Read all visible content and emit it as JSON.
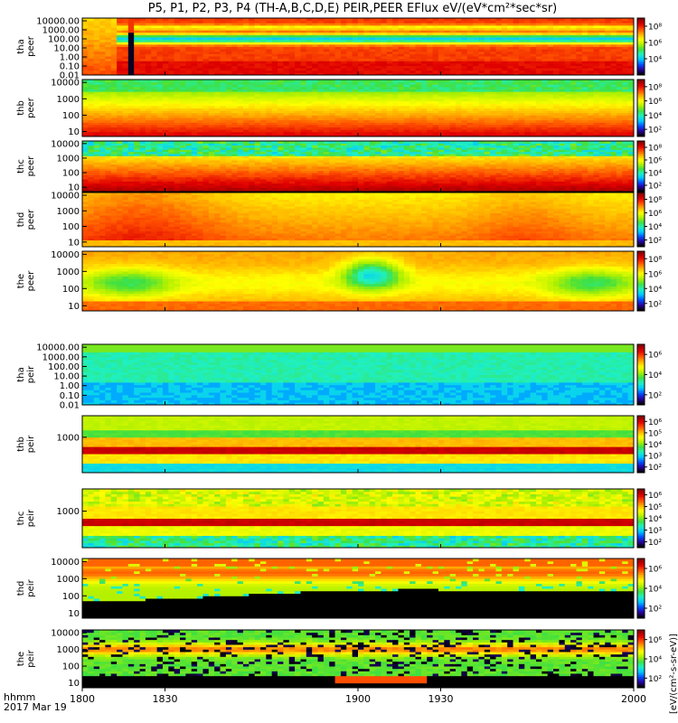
{
  "title": "P5, P1, P2, P3, P4 (TH-A,B,C,D,E) PEIR,PEER EFlux eV/(eV*cm²*sec*sr)",
  "x_units_line1": "hhmm",
  "x_units_line2": "2017 Mar 19",
  "colorbar_units": "[eV/(cm²-s-sr-eV)]",
  "colors": {
    "cmap": [
      "#000000",
      "#2a00a0",
      "#0050ff",
      "#00c8ff",
      "#20f0c0",
      "#40e040",
      "#b0f000",
      "#ffff00",
      "#ffb000",
      "#ff5000",
      "#e00000",
      "#900000"
    ]
  },
  "chart_data": {
    "type": "heatmap",
    "x": {
      "ticks": [
        1800,
        1830,
        1900,
        1930,
        2000
      ],
      "tick_labels": [
        "1800",
        "1830",
        "1900",
        "1930",
        "2000"
      ],
      "range": [
        1800,
        2000
      ]
    },
    "panels": [
      {
        "label": [
          "tha",
          "peer"
        ],
        "y_scale": "log",
        "y_range": [
          0.01,
          20000
        ],
        "y_ticks": [
          0.01,
          0.1,
          1,
          10,
          100,
          1000,
          10000
        ],
        "y_tick_labels": [
          "0.01",
          "0.10",
          "1.00",
          "10.00",
          "100.00",
          "1000.00",
          "10000.00"
        ],
        "cbar_ticks": [
          4,
          6,
          8
        ],
        "cbar_tick_labels": [
          "10⁴",
          "10⁶",
          "10⁸"
        ],
        "cbar_range": [
          2,
          9
        ],
        "pattern": "thapeer"
      },
      {
        "label": [
          "thb",
          "peer"
        ],
        "y_scale": "log",
        "y_range": [
          5,
          15000
        ],
        "y_ticks": [
          10,
          100,
          1000,
          10000
        ],
        "y_tick_labels": [
          "10",
          "100",
          "1000",
          "10000"
        ],
        "cbar_ticks": [
          2,
          4,
          6,
          8
        ],
        "cbar_tick_labels": [
          "10²",
          "10⁴",
          "10⁶",
          "10⁸"
        ],
        "cbar_range": [
          1,
          9
        ],
        "pattern": "thbpeer"
      },
      {
        "label": [
          "thc",
          "peer"
        ],
        "y_scale": "log",
        "y_range": [
          5,
          15000
        ],
        "y_ticks": [
          10,
          100,
          1000,
          10000
        ],
        "y_tick_labels": [
          "10",
          "100",
          "1000",
          "10000"
        ],
        "cbar_ticks": [
          2,
          4,
          6,
          8
        ],
        "cbar_tick_labels": [
          "10²",
          "10⁴",
          "10⁶",
          "10⁸"
        ],
        "cbar_range": [
          1,
          9
        ],
        "pattern": "thcpeer"
      },
      {
        "label": [
          "thd",
          "peer"
        ],
        "y_scale": "log",
        "y_range": [
          5,
          15000
        ],
        "y_ticks": [
          10,
          100,
          1000,
          10000
        ],
        "y_tick_labels": [
          "10",
          "100",
          "1000",
          "10000"
        ],
        "cbar_ticks": [
          2,
          4,
          6,
          8
        ],
        "cbar_tick_labels": [
          "10²",
          "10⁴",
          "10⁶",
          "10⁸"
        ],
        "cbar_range": [
          1,
          9
        ],
        "pattern": "thdpeer"
      },
      {
        "label": [
          "the",
          "peer"
        ],
        "y_scale": "log",
        "y_range": [
          5,
          15000
        ],
        "y_ticks": [
          10,
          100,
          1000,
          10000
        ],
        "y_tick_labels": [
          "10",
          "100",
          "1000",
          "10000"
        ],
        "cbar_ticks": [
          2,
          4,
          6,
          8
        ],
        "cbar_tick_labels": [
          "10²",
          "10⁴",
          "10⁶",
          "10⁸"
        ],
        "cbar_range": [
          1,
          9
        ],
        "pattern": "thepeer"
      },
      {
        "label": [
          "tha",
          "peir"
        ],
        "y_scale": "log",
        "y_range": [
          0.01,
          20000
        ],
        "y_ticks": [
          0.01,
          0.1,
          1,
          10,
          100,
          1000,
          10000
        ],
        "y_tick_labels": [
          "0.01",
          "0.10",
          "1.00",
          "10.00",
          "100.00",
          "1000.00",
          "10000.00"
        ],
        "cbar_ticks": [
          2,
          4,
          6
        ],
        "cbar_tick_labels": [
          "10²",
          "10⁴",
          "10⁶"
        ],
        "cbar_range": [
          1,
          7
        ],
        "pattern": "thapeir"
      },
      {
        "label": [
          "thb",
          "peir"
        ],
        "y_scale": "log",
        "y_range": [
          5,
          25000
        ],
        "y_ticks": [
          1000
        ],
        "y_tick_labels": [
          "1000"
        ],
        "cbar_ticks": [
          2,
          3,
          4,
          5,
          6
        ],
        "cbar_tick_labels": [
          "10²",
          "10³",
          "10⁴",
          "10⁵",
          "10⁶"
        ],
        "cbar_range": [
          1.5,
          6.5
        ],
        "pattern": "thbpeir"
      },
      {
        "label": [
          "thc",
          "peir"
        ],
        "y_scale": "log",
        "y_range": [
          5,
          25000
        ],
        "y_ticks": [
          1000
        ],
        "y_tick_labels": [
          "1000"
        ],
        "cbar_ticks": [
          2,
          3,
          4,
          5,
          6
        ],
        "cbar_tick_labels": [
          "10²",
          "10³",
          "10⁴",
          "10⁵",
          "10⁶"
        ],
        "cbar_range": [
          1.5,
          6.5
        ],
        "pattern": "thcpeir"
      },
      {
        "label": [
          "thd",
          "peir"
        ],
        "y_scale": "log",
        "y_range": [
          5,
          15000
        ],
        "y_ticks": [
          10,
          100,
          1000,
          10000
        ],
        "y_tick_labels": [
          "10",
          "100",
          "1000",
          "10000"
        ],
        "cbar_ticks": [
          2,
          4,
          6
        ],
        "cbar_tick_labels": [
          "10²",
          "10⁴",
          "10⁶"
        ],
        "cbar_range": [
          1,
          7
        ],
        "pattern": "thdpeir"
      },
      {
        "label": [
          "the",
          "peir"
        ],
        "y_scale": "log",
        "y_range": [
          5,
          15000
        ],
        "y_ticks": [
          10,
          100,
          1000,
          10000
        ],
        "y_tick_labels": [
          "10",
          "100",
          "1000",
          "10000"
        ],
        "cbar_ticks": [
          2,
          4,
          6
        ],
        "cbar_tick_labels": [
          "10²",
          "10⁴",
          "10⁶"
        ],
        "cbar_range": [
          1,
          7
        ],
        "pattern": "thepeir"
      }
    ]
  }
}
